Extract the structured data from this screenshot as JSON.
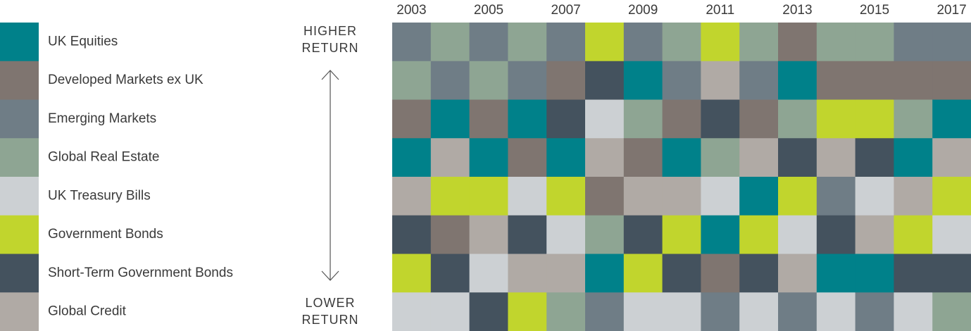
{
  "chart_data": {
    "type": "ranking",
    "categories": [
      "2003",
      null,
      "2005",
      null,
      "2007",
      null,
      "2009",
      null,
      "2011",
      null,
      "2013",
      null,
      "2015",
      null,
      "2017"
    ],
    "series": [
      {
        "name": "UK Equities",
        "color": "#00818a"
      },
      {
        "name": "Developed Markets ex UK",
        "color": "#7f7570"
      },
      {
        "name": "Emerging Markets",
        "color": "#6f7d86"
      },
      {
        "name": "Global Real Estate",
        "color": "#8ea593"
      },
      {
        "name": "UK Treasury Bills",
        "color": "#ccd0d3"
      },
      {
        "name": "Government Bonds",
        "color": "#c1d52d"
      },
      {
        "name": "Short-Term Government Bonds",
        "color": "#44525e"
      },
      {
        "name": "Global Credit",
        "color": "#b0aaa5"
      }
    ],
    "ranks": [
      [
        2,
        3,
        1,
        0,
        7,
        6,
        5,
        4
      ],
      [
        3,
        2,
        0,
        7,
        5,
        1,
        6,
        4
      ],
      [
        2,
        3,
        1,
        0,
        5,
        7,
        4,
        6
      ],
      [
        3,
        2,
        0,
        1,
        4,
        6,
        7,
        5
      ],
      [
        2,
        1,
        6,
        0,
        5,
        4,
        7,
        3
      ],
      [
        5,
        6,
        4,
        7,
        1,
        3,
        0,
        2
      ],
      [
        2,
        0,
        3,
        1,
        7,
        6,
        5,
        4
      ],
      [
        3,
        2,
        1,
        0,
        7,
        5,
        6,
        4
      ],
      [
        5,
        7,
        6,
        3,
        4,
        0,
        1,
        2
      ],
      [
        3,
        2,
        1,
        7,
        0,
        5,
        6,
        4
      ],
      [
        1,
        0,
        3,
        6,
        5,
        4,
        7,
        2
      ],
      [
        3,
        1,
        5,
        7,
        2,
        6,
        0,
        4
      ],
      [
        3,
        1,
        5,
        6,
        4,
        7,
        0,
        2
      ],
      [
        2,
        1,
        3,
        0,
        7,
        5,
        6,
        4
      ],
      [
        2,
        1,
        0,
        7,
        5,
        4,
        6,
        3
      ]
    ],
    "top_label": "HIGHER RETURN",
    "bottom_label": "LOWER RETURN"
  }
}
